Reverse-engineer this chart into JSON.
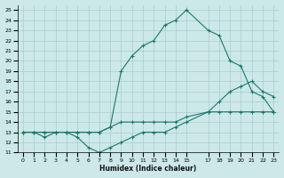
{
  "xlabel": "Humidex (Indice chaleur)",
  "background_color": "#cce8e8",
  "grid_color": "#aacccc",
  "line_color": "#1a7a6a",
  "xlim": [
    -0.5,
    23.5
  ],
  "ylim": [
    11,
    25.5
  ],
  "xticks": [
    0,
    1,
    2,
    3,
    4,
    5,
    6,
    7,
    8,
    9,
    10,
    11,
    12,
    13,
    14,
    15,
    17,
    18,
    19,
    20,
    21,
    22,
    23
  ],
  "yticks": [
    11,
    12,
    13,
    14,
    15,
    16,
    17,
    18,
    19,
    20,
    21,
    22,
    23,
    24,
    25
  ],
  "line1_x": [
    0,
    1,
    2,
    3,
    4,
    5,
    6,
    7,
    8,
    9,
    10,
    11,
    12,
    13,
    14,
    15,
    17,
    18,
    19,
    20,
    21,
    22,
    23
  ],
  "line1_y": [
    13,
    13,
    12.5,
    13,
    13,
    12.5,
    11.5,
    11,
    11.5,
    12,
    12.5,
    13,
    13,
    13,
    13.5,
    14,
    15,
    16,
    17,
    17.5,
    18,
    17,
    16.5
  ],
  "line2_x": [
    0,
    1,
    2,
    3,
    4,
    5,
    6,
    7,
    8,
    9,
    10,
    11,
    12,
    13,
    14,
    15,
    17,
    18,
    19,
    20,
    21,
    22,
    23
  ],
  "line2_y": [
    13,
    13,
    13,
    13,
    13,
    13,
    13,
    13,
    13.5,
    14,
    14,
    14,
    14,
    14,
    14,
    14.5,
    15,
    15,
    15,
    15,
    15,
    15,
    15
  ],
  "line3_x": [
    0,
    1,
    2,
    3,
    4,
    5,
    6,
    7,
    8,
    9,
    10,
    11,
    12,
    13,
    14,
    15,
    17,
    18,
    19,
    20,
    21,
    22,
    23
  ],
  "line3_y": [
    13,
    13,
    13,
    13,
    13,
    13,
    13,
    13,
    13.5,
    19,
    20.5,
    21.5,
    22,
    23.5,
    24,
    25,
    23,
    22.5,
    20,
    19.5,
    17,
    16.5,
    15
  ]
}
